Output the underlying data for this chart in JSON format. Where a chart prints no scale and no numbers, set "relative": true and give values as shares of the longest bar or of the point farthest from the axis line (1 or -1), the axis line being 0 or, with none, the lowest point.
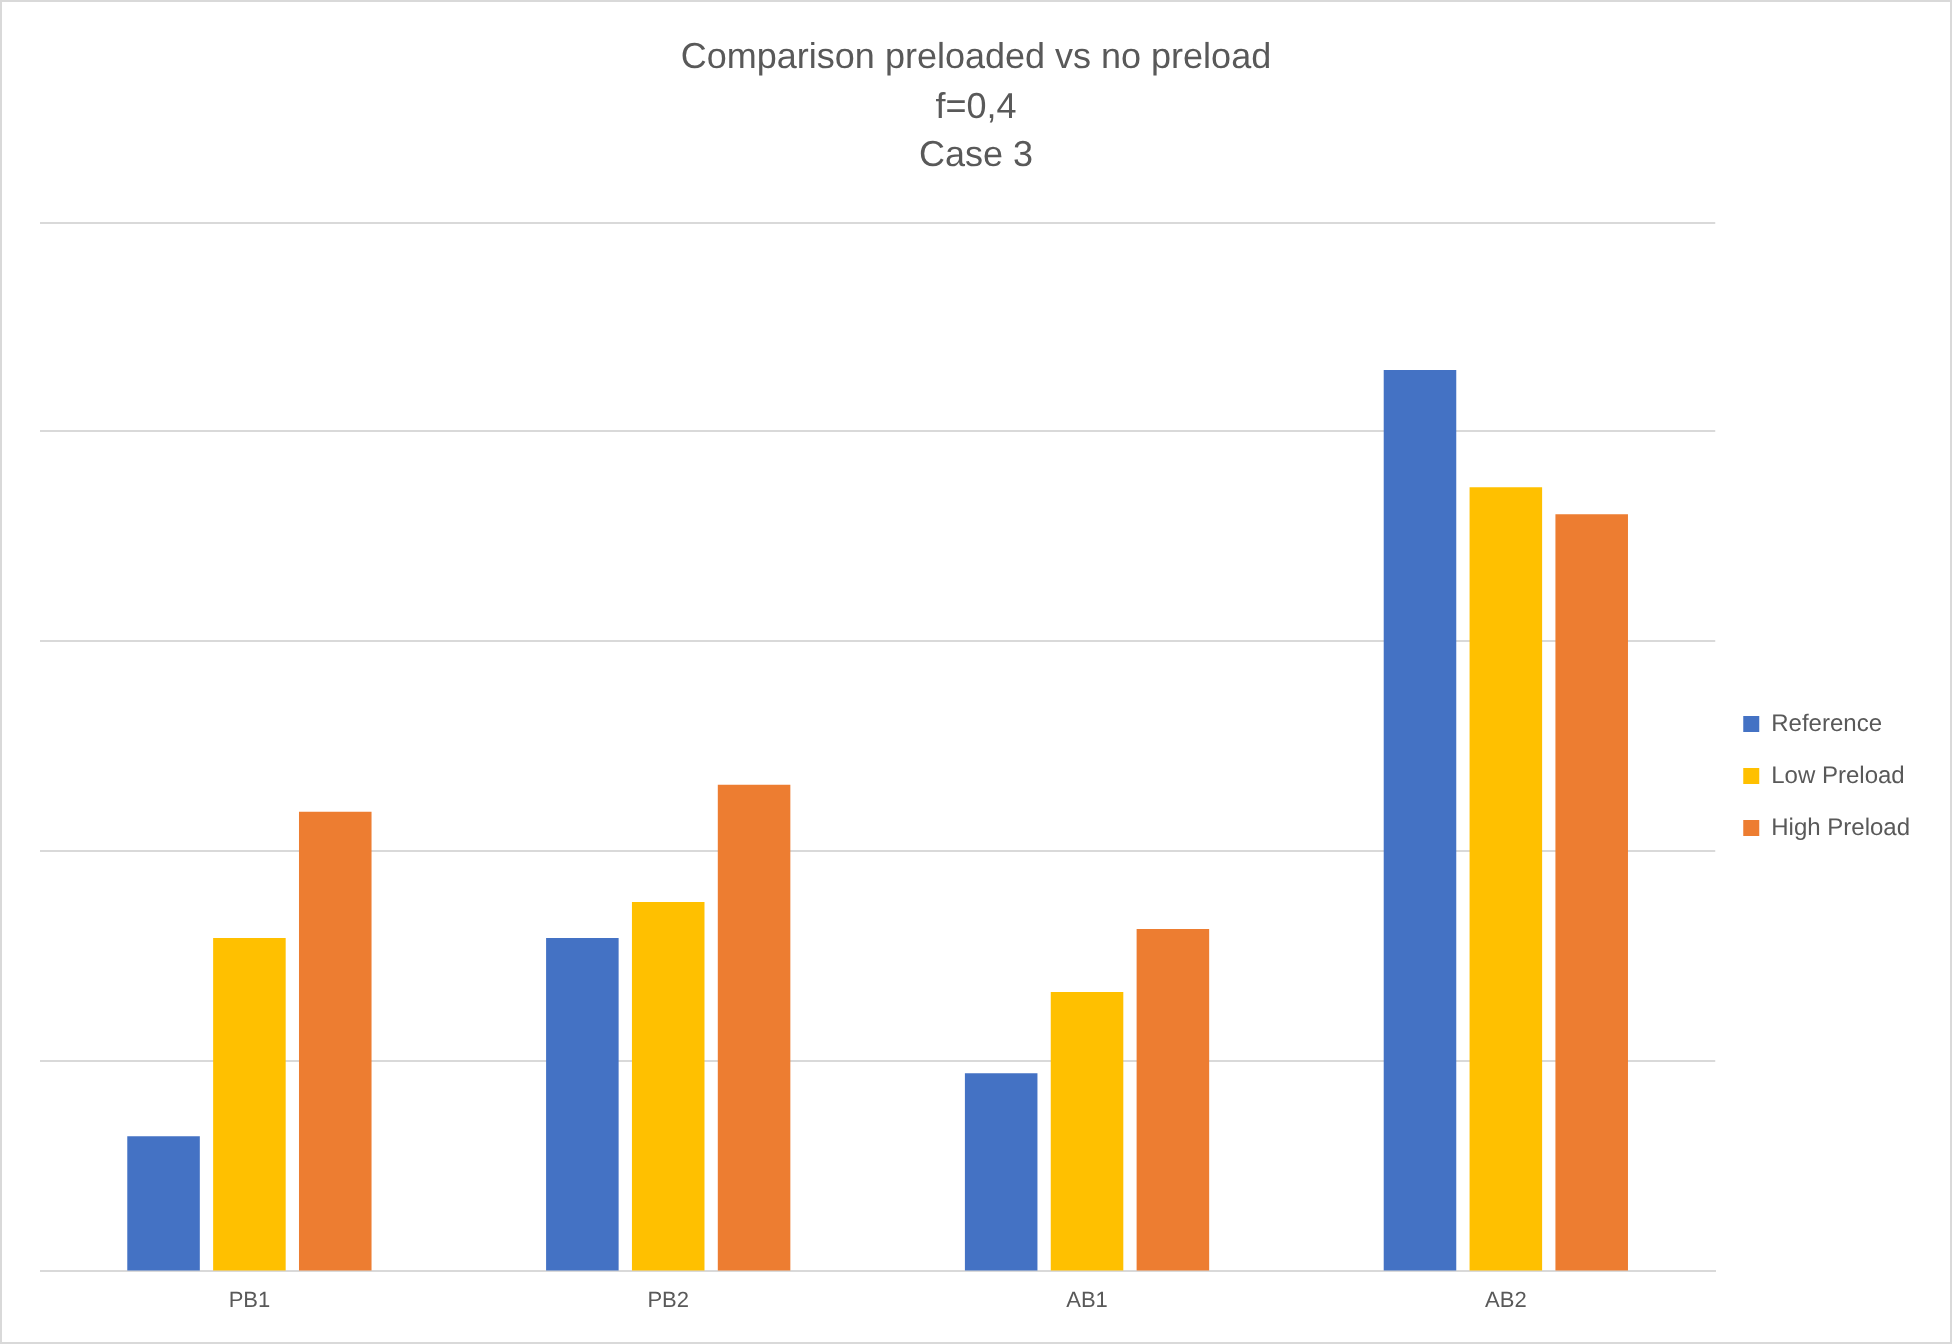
{
  "chart_data": {
    "type": "bar",
    "title": "Comparison preloaded vs no preload\nf=0,4\nCase 3",
    "categories": [
      "PB1",
      "PB2",
      "AB1",
      "AB2"
    ],
    "series": [
      {
        "name": "Reference",
        "color": "#4472c4",
        "values": [
          0.15,
          0.37,
          0.22,
          1
        ]
      },
      {
        "name": "Low Preload",
        "color": "#ffc000",
        "values": [
          0.37,
          0.41,
          0.31,
          0.87
        ]
      },
      {
        "name": "High Preload",
        "color": "#ed7d31",
        "values": [
          0.51,
          0.54,
          0.38,
          0.84
        ]
      }
    ],
    "relative": true,
    "grid": true,
    "legend": "right"
  }
}
